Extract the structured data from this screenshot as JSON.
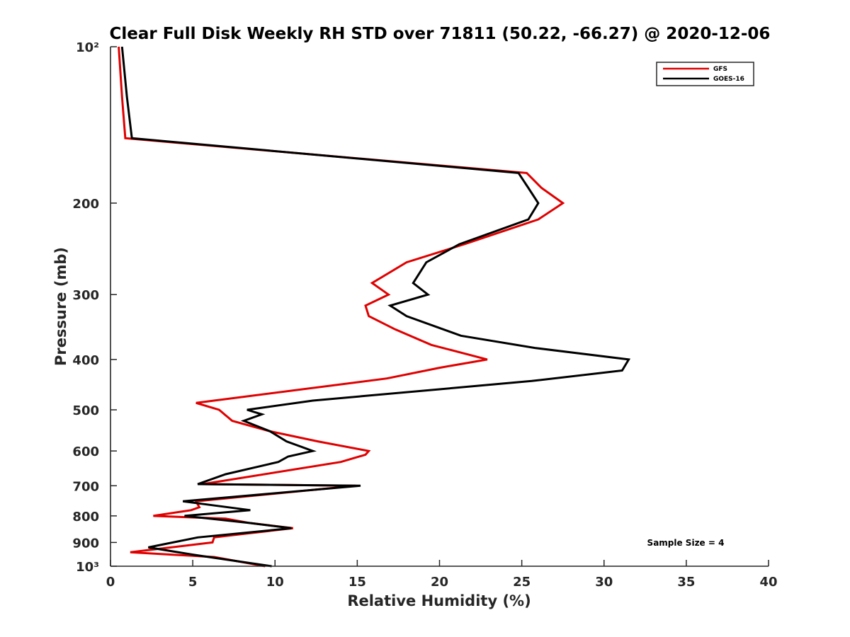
{
  "chart_data": {
    "type": "line",
    "title": "Clear Full Disk Weekly RH STD over 71811 (50.22, -66.27) @ 2020-12-06",
    "xlabel": "Relative Humidity (%)",
    "ylabel": "Pressure (mb)",
    "xlim": [
      0,
      40
    ],
    "ylim": [
      100,
      1000
    ],
    "y_scale": "log",
    "y_reversed": true,
    "x_ticks": [
      0,
      5,
      10,
      15,
      20,
      25,
      30,
      35,
      40
    ],
    "x_tick_labels": [
      "0",
      "5",
      "10",
      "15",
      "20",
      "25",
      "30",
      "35",
      "40"
    ],
    "y_ticks": [
      100,
      200,
      300,
      400,
      500,
      600,
      700,
      800,
      900,
      1000
    ],
    "y_tick_labels": [
      "10²",
      "200",
      "300",
      "400",
      "500",
      "600",
      "700",
      "800",
      "900",
      "10³"
    ],
    "legend_position": "top-right",
    "annotation": "Sample Size = 4",
    "series": [
      {
        "name": "GFS",
        "color": "#e00000",
        "points": [
          [
            0.5,
            100
          ],
          [
            0.7,
            125
          ],
          [
            0.9,
            150
          ],
          [
            25.3,
            175
          ],
          [
            26.2,
            187
          ],
          [
            27.5,
            200
          ],
          [
            26,
            215
          ],
          [
            21.5,
            240
          ],
          [
            18,
            260
          ],
          [
            15.9,
            285
          ],
          [
            16.9,
            300
          ],
          [
            15.5,
            315
          ],
          [
            15.7,
            330
          ],
          [
            17.3,
            350
          ],
          [
            19.5,
            375
          ],
          [
            22.9,
            400
          ],
          [
            20,
            415
          ],
          [
            16.8,
            435
          ],
          [
            5.2,
            485
          ],
          [
            6.6,
            500
          ],
          [
            7.4,
            525
          ],
          [
            9.7,
            550
          ],
          [
            12.6,
            575
          ],
          [
            15.7,
            600
          ],
          [
            15.5,
            610
          ],
          [
            14,
            630
          ],
          [
            5.6,
            695
          ],
          [
            14.9,
            700
          ],
          [
            5.2,
            750
          ],
          [
            5.4,
            770
          ],
          [
            4.9,
            780
          ],
          [
            2.6,
            800
          ],
          [
            7,
            810
          ],
          [
            8.4,
            825
          ],
          [
            11.1,
            845
          ],
          [
            7.6,
            870
          ],
          [
            6.3,
            880
          ],
          [
            6.2,
            900
          ],
          [
            1.2,
            940
          ],
          [
            6.3,
            960
          ],
          [
            9.4,
            1000
          ]
        ]
      },
      {
        "name": "GOES-16",
        "color": "#000000",
        "points": [
          [
            0.7,
            100
          ],
          [
            1,
            125
          ],
          [
            1.3,
            150
          ],
          [
            24.8,
            175
          ],
          [
            25.4,
            187
          ],
          [
            26,
            200
          ],
          [
            25.4,
            215
          ],
          [
            21.2,
            240
          ],
          [
            19.2,
            260
          ],
          [
            18.4,
            285
          ],
          [
            19.3,
            300
          ],
          [
            17,
            315
          ],
          [
            18,
            330
          ],
          [
            21.3,
            360
          ],
          [
            25.8,
            380
          ],
          [
            31.5,
            400
          ],
          [
            31.1,
            420
          ],
          [
            25.6,
            440
          ],
          [
            12.3,
            480
          ],
          [
            8.3,
            500
          ],
          [
            9.2,
            510
          ],
          [
            8.1,
            525
          ],
          [
            9.7,
            550
          ],
          [
            10.7,
            575
          ],
          [
            12.3,
            600
          ],
          [
            10.8,
            615
          ],
          [
            10.2,
            630
          ],
          [
            7,
            665
          ],
          [
            5.3,
            695
          ],
          [
            15.2,
            700
          ],
          [
            4.4,
            750
          ],
          [
            8.5,
            780
          ],
          [
            4.5,
            800
          ],
          [
            8.4,
            825
          ],
          [
            11,
            845
          ],
          [
            5.3,
            880
          ],
          [
            2.3,
            920
          ],
          [
            5,
            950
          ],
          [
            7.4,
            975
          ],
          [
            9.8,
            1000
          ]
        ]
      }
    ]
  }
}
